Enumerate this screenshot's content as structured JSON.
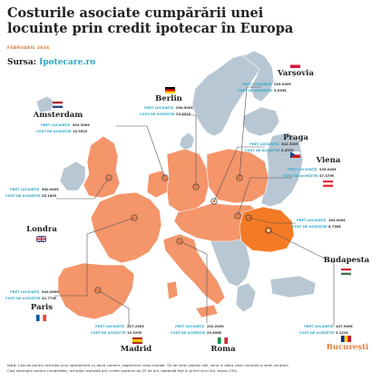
{
  "header": {
    "title": "Costurile asociate cumpărării unei locuințe prin credit ipotecar în Europa",
    "date": "FEBRUARIE 2026",
    "source_label": "Sursa:",
    "source_site": "Ipotecare.ro"
  },
  "labels": {
    "price": "PREȚ LOCUINȚĂ",
    "cost": "COST DE ACHIZIȚIE"
  },
  "colors": {
    "highlight": "#f4956a",
    "romania": "#f47a25",
    "other_land": "#b7c7d3",
    "accent": "#2aa7c7",
    "marker": "#e6692a"
  },
  "cities": [
    {
      "name": "Amsterdam",
      "price": "402.300€",
      "cost": "15.951€",
      "flag": "nl"
    },
    {
      "name": "Berlin",
      "price": "290.500€",
      "cost": "23.031€",
      "flag": "de"
    },
    {
      "name": "Varșovia",
      "price": "205.000€",
      "cost": "9.095€",
      "flag": "pl"
    },
    {
      "name": "Praga",
      "price": "342.300€",
      "cost": "5.597€",
      "flag": "cz"
    },
    {
      "name": "Viena",
      "price": "335.000€",
      "cost": "47.479€",
      "flag": "at"
    },
    {
      "name": "Londra",
      "price": "500.000€",
      "cost": "25.162€",
      "flag": "gb"
    },
    {
      "name": "Budapesta",
      "price": "163.000€",
      "cost": "6.736€",
      "flag": "hu"
    },
    {
      "name": "Paris",
      "price": "540.000€",
      "cost": "42.775€",
      "flag": "fr"
    },
    {
      "name": "Madrid",
      "price": "227.250€",
      "cost": "19.325€",
      "flag": "es"
    },
    {
      "name": "Roma",
      "price": "202.000€",
      "cost": "23.658€",
      "flag": "it"
    },
    {
      "name": "București",
      "price": "107.900€",
      "cost": "2.121€",
      "flag": "ro"
    }
  ],
  "notes": [
    "Notă: Calcule pentru achiziția unui apartament cu două camere, segmentul mass market. 50 de metri pătrați utili, zona în afara celor centrale și semi-centrale.",
    "Cost estimativ pentru cumpărător, achiziție realizată prin credit ipotecar pe 25 de ani, dobândă fixă în primii cinci ani, avans 15%."
  ]
}
